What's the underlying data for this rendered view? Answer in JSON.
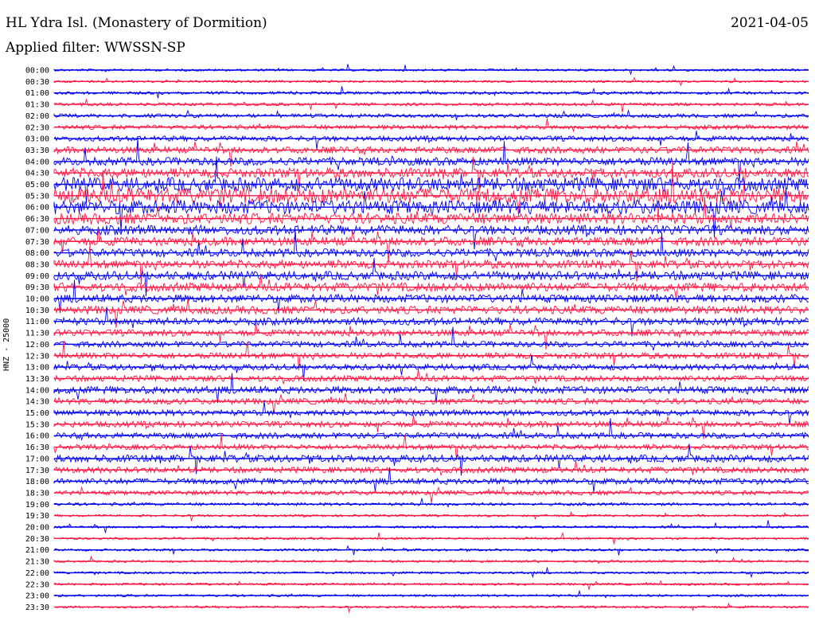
{
  "header": {
    "station": "HL Ydra Isl. (Monastery of Dormition)",
    "filter": "Applied filter: WWSSN-SP",
    "date": "2021-04-05"
  },
  "chart_data": {
    "type": "line",
    "channel_label": "HNZ - 25000",
    "colors": {
      "odd_trace": "#0000ee",
      "even_trace": "#ff1744"
    },
    "traces": [
      {
        "time": "00:00",
        "level": 0.05
      },
      {
        "time": "00:30",
        "level": 0.05
      },
      {
        "time": "01:00",
        "level": 0.1
      },
      {
        "time": "01:30",
        "level": 0.1
      },
      {
        "time": "02:00",
        "level": 0.15
      },
      {
        "time": "02:30",
        "level": 0.2
      },
      {
        "time": "03:00",
        "level": 0.25
      },
      {
        "time": "03:30",
        "level": 0.35
      },
      {
        "time": "04:00",
        "level": 0.45
      },
      {
        "time": "04:30",
        "level": 0.55
      },
      {
        "time": "05:00",
        "level": 0.85
      },
      {
        "time": "05:30",
        "level": 0.95
      },
      {
        "time": "06:00",
        "level": 0.85
      },
      {
        "time": "06:30",
        "level": 0.65
      },
      {
        "time": "07:00",
        "level": 0.55
      },
      {
        "time": "07:30",
        "level": 0.5
      },
      {
        "time": "08:00",
        "level": 0.45
      },
      {
        "time": "08:30",
        "level": 0.45
      },
      {
        "time": "09:00",
        "level": 0.5
      },
      {
        "time": "09:30",
        "level": 0.5
      },
      {
        "time": "10:00",
        "level": 0.45
      },
      {
        "time": "10:30",
        "level": 0.45
      },
      {
        "time": "11:00",
        "level": 0.4
      },
      {
        "time": "11:30",
        "level": 0.35
      },
      {
        "time": "12:00",
        "level": 0.3
      },
      {
        "time": "12:30",
        "level": 0.3
      },
      {
        "time": "13:00",
        "level": 0.3
      },
      {
        "time": "13:30",
        "level": 0.3
      },
      {
        "time": "14:00",
        "level": 0.4
      },
      {
        "time": "14:30",
        "level": 0.3
      },
      {
        "time": "15:00",
        "level": 0.3
      },
      {
        "time": "15:30",
        "level": 0.3
      },
      {
        "time": "16:00",
        "level": 0.3
      },
      {
        "time": "16:30",
        "level": 0.25
      },
      {
        "time": "17:00",
        "level": 0.4
      },
      {
        "time": "17:30",
        "level": 0.3
      },
      {
        "time": "18:00",
        "level": 0.3
      },
      {
        "time": "18:30",
        "level": 0.2
      },
      {
        "time": "19:00",
        "level": 0.1
      },
      {
        "time": "19:30",
        "level": 0.05
      },
      {
        "time": "20:00",
        "level": 0.05
      },
      {
        "time": "20:30",
        "level": 0.05
      },
      {
        "time": "21:00",
        "level": 0.05
      },
      {
        "time": "21:30",
        "level": 0.05
      },
      {
        "time": "22:00",
        "level": 0.05
      },
      {
        "time": "22:30",
        "level": 0.05
      },
      {
        "time": "23:00",
        "level": 0.05
      },
      {
        "time": "23:30",
        "level": 0.05
      }
    ]
  }
}
